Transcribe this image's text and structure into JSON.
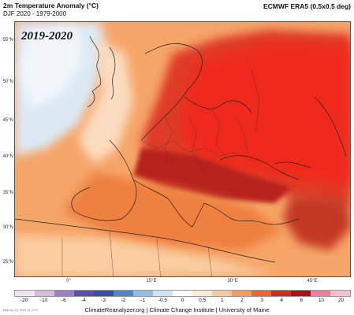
{
  "header": {
    "title": "2m Temperature Anomaly (°C)",
    "subtitle": "DJF 2020 - 1979-2000",
    "source": "ECMWF ERA5 (0.5x0.5 deg)"
  },
  "map": {
    "year_label": "2019-2020",
    "lat_labels": [
      "55°N",
      "50°N",
      "45°N",
      "40°N",
      "35°N",
      "30°N",
      "25°N"
    ],
    "lon_labels": [
      "0°",
      "15°E",
      "30°E",
      "45°E"
    ]
  },
  "legend": {
    "labels": [
      "-20",
      "-10",
      "-6",
      "-4",
      "-3",
      "-2",
      "-1",
      "-0.5",
      "0",
      "0.5",
      "1",
      "2",
      "3",
      "4",
      "6",
      "10",
      "20"
    ],
    "colors": [
      "#f0e4f2",
      "#d6b8e0",
      "#9a7fc6",
      "#5a4fb0",
      "#3b4ea6",
      "#4f86c6",
      "#8fbde0",
      "#cfe4f2",
      "#ffffff",
      "#fde8d2",
      "#f9c79c",
      "#f39a5e",
      "#e9662f",
      "#c9301d",
      "#a11616",
      "#f07e9c",
      "#f7bfd2"
    ]
  },
  "footer": {
    "credit": "ClimateReanalyzer.org | Climate Change Institute | University of Maine",
    "small_print": "Map by JQ 2020 01 UTC"
  }
}
